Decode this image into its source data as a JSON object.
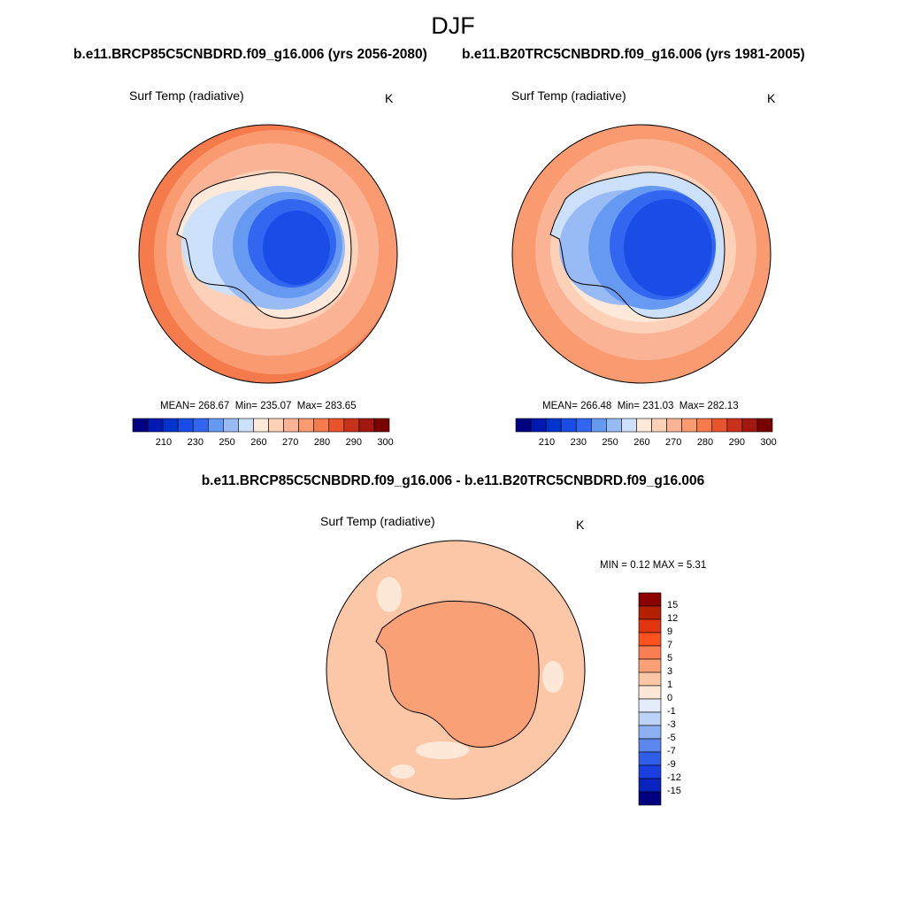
{
  "title": "DJF",
  "left_panel": {
    "case": "b.e11.BRCP85C5CNBDRD.f09_g16.006 (yrs 2056-2080)",
    "variable": "Surf Temp (radiative)",
    "units": "K",
    "mean_label": "MEAN=",
    "mean_value": "268.67",
    "min_label": "Min=",
    "min_value": "235.07",
    "max_label": "Max=",
    "max_value": "283.65"
  },
  "right_panel": {
    "case": "b.e11.B20TRC5CNBDRD.f09_g16.006 (yrs 1981-2005)",
    "variable": "Surf Temp (radiative)",
    "units": "K",
    "mean_label": "MEAN=",
    "mean_value": "266.48",
    "min_label": "Min=",
    "min_value": "231.03",
    "max_label": "Max=",
    "max_value": "282.13"
  },
  "abs_colorbar": {
    "labels": [
      "210",
      "230",
      "250",
      "260",
      "270",
      "280",
      "290",
      "300"
    ],
    "colors": [
      "#000080",
      "#0019b3",
      "#0033cc",
      "#1a4de6",
      "#3366f0",
      "#6699f2",
      "#99bbf5",
      "#cce0fa",
      "#fde9d9",
      "#fdd0b8",
      "#fbb395",
      "#f99a70",
      "#f57a4c",
      "#e8552c",
      "#c8321b",
      "#a01810",
      "#780000"
    ]
  },
  "diff_panel": {
    "title": "b.e11.BRCP85C5CNBDRD.f09_g16.006 - b.e11.B20TRC5CNBDRD.f09_g16.006",
    "variable": "Surf Temp (radiative)",
    "units": "K",
    "min_label": "MIN =",
    "min_value": "0.12",
    "max_label": "MAX =",
    "max_value": "5.31"
  },
  "diff_colorbar": {
    "labels": [
      "15",
      "12",
      "9",
      "7",
      "5",
      "3",
      "1",
      "0",
      "-1",
      "-3",
      "-5",
      "-7",
      "-9",
      "-12",
      "-15"
    ],
    "colors": [
      "#8b0000",
      "#b22000",
      "#e03510",
      "#ff5020",
      "#fb7d52",
      "#f9a077",
      "#fbc7a6",
      "#fde8d8",
      "#e2ecfa",
      "#bcd2f6",
      "#8cb0f2",
      "#5b86ee",
      "#2f5ee8",
      "#1a3ee0",
      "#0a22c0",
      "#000080"
    ]
  },
  "map_colors": {
    "ocean_warm": "#fbb395",
    "ocean_warmer": "#f99a70",
    "ocean_hot": "#f57a4c",
    "ocean_cool": "#fdd0b8",
    "near_zero": "#fde9d9",
    "ice_light": "#cce0fa",
    "ice_mid": "#99bbf5",
    "ice_blue": "#6699f2",
    "ice_deep": "#3366f0",
    "ice_core": "#1a4de6",
    "diff_base": "#fbc7a6",
    "diff_land": "#f9a077",
    "diff_low": "#fde8d8",
    "coast": "#000000"
  }
}
